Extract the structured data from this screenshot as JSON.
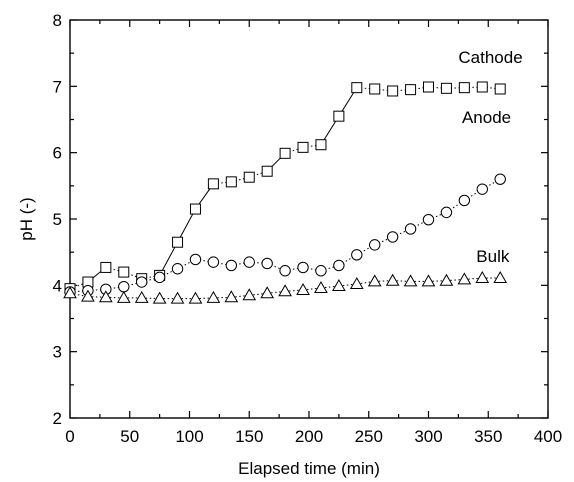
{
  "chart_data": {
    "type": "line",
    "title": "",
    "xlabel": "Elapsed time (min)",
    "ylabel": "pH (-)",
    "xlim": [
      0,
      400
    ],
    "ylim": [
      2,
      8
    ],
    "xticks": [
      "0",
      "50",
      "100",
      "150",
      "200",
      "250",
      "300",
      "350",
      "400"
    ],
    "yticks": [
      "2",
      "3",
      "4",
      "5",
      "6",
      "7",
      "8"
    ],
    "grid": false,
    "series": [
      {
        "name": "Cathode",
        "marker": "square",
        "x": [
          0,
          15,
          30,
          45,
          60,
          75,
          90,
          105,
          120,
          135,
          150,
          165,
          180,
          195,
          210,
          225,
          240,
          255,
          270,
          285,
          300,
          315,
          330,
          345,
          360
        ],
        "y": [
          3.95,
          4.05,
          4.27,
          4.2,
          4.1,
          4.15,
          4.65,
          5.15,
          5.53,
          5.56,
          5.63,
          5.72,
          5.99,
          6.08,
          6.12,
          6.55,
          6.98,
          6.96,
          6.93,
          6.95,
          6.99,
          6.97,
          6.98,
          6.99,
          6.96
        ]
      },
      {
        "name": "Anode",
        "marker": "circle",
        "x": [
          0,
          15,
          30,
          45,
          60,
          75,
          90,
          105,
          120,
          135,
          150,
          165,
          180,
          195,
          210,
          225,
          240,
          255,
          270,
          285,
          300,
          315,
          330,
          345,
          360
        ],
        "y": [
          3.9,
          3.92,
          3.94,
          3.98,
          4.05,
          4.12,
          4.25,
          4.39,
          4.35,
          4.3,
          4.35,
          4.33,
          4.22,
          4.27,
          4.22,
          4.3,
          4.46,
          4.61,
          4.73,
          4.85,
          4.99,
          5.1,
          5.28,
          5.45,
          5.6
        ]
      },
      {
        "name": "Bulk",
        "marker": "triangle",
        "x": [
          0,
          15,
          30,
          45,
          60,
          75,
          90,
          105,
          120,
          135,
          150,
          165,
          180,
          195,
          210,
          225,
          240,
          255,
          270,
          285,
          300,
          315,
          330,
          345,
          360
        ],
        "y": [
          3.88,
          3.83,
          3.82,
          3.81,
          3.81,
          3.8,
          3.8,
          3.8,
          3.81,
          3.82,
          3.85,
          3.88,
          3.91,
          3.93,
          3.96,
          3.99,
          4.02,
          4.06,
          4.07,
          4.06,
          4.06,
          4.07,
          4.09,
          4.11,
          4.11
        ]
      }
    ],
    "annotations": [
      {
        "text": "Cathode",
        "x": 325,
        "y": 7.35
      },
      {
        "text": "Anode",
        "x": 328,
        "y": 6.45
      },
      {
        "text": "Bulk",
        "x": 340,
        "y": 4.35
      }
    ]
  }
}
